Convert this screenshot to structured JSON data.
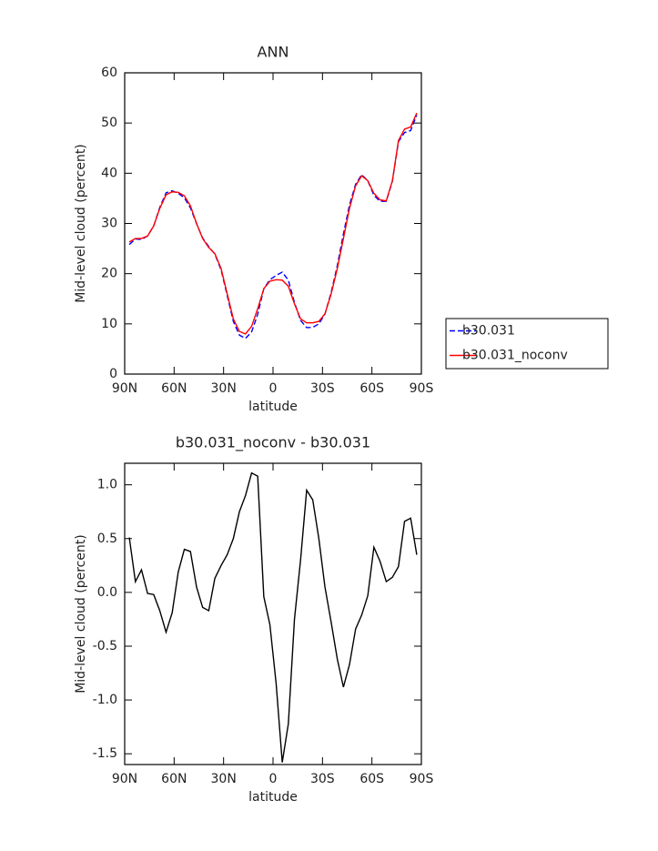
{
  "chart_data": [
    {
      "type": "line",
      "title": "ANN",
      "x_label": "latitude",
      "y_label": "Mid-level cloud (percent)",
      "x": [
        87.2,
        83.5,
        79.8,
        76.1,
        72.4,
        68.7,
        64.9,
        61.2,
        57.5,
        53.8,
        50.1,
        46.4,
        42.7,
        39.0,
        35.3,
        31.5,
        27.8,
        24.1,
        20.4,
        16.7,
        13.0,
        9.3,
        5.6,
        1.9,
        -1.9,
        -5.6,
        -9.3,
        -13.0,
        -16.7,
        -20.4,
        -24.1,
        -27.8,
        -31.5,
        -35.3,
        -39.0,
        -42.7,
        -46.4,
        -50.1,
        -53.8,
        -57.5,
        -61.2,
        -64.9,
        -68.7,
        -72.4,
        -76.1,
        -79.8,
        -83.5,
        -87.2
      ],
      "series": [
        {
          "name": "b30.031",
          "color": "#0000ff",
          "dash": "dashed",
          "values": [
            25.8,
            26.9,
            26.8,
            27.5,
            29.5,
            33.2,
            36.1,
            36.5,
            36.0,
            35.1,
            33.1,
            29.95,
            27.1,
            25.4,
            23.9,
            20.75,
            15.65,
            10.5,
            7.75,
            7.1,
            8.4,
            11.9,
            17.0,
            18.8,
            19.65,
            20.3,
            18.7,
            14.25,
            10.7,
            9.25,
            9.3,
            10.0,
            11.95,
            16.3,
            21.6,
            27.9,
            33.7,
            37.8,
            39.7,
            38.5,
            35.6,
            34.4,
            34.4,
            38.4,
            46.3,
            48.1,
            48.5,
            51.6
          ]
        },
        {
          "name": "b30.031_noconv",
          "color": "#ff0000",
          "dash": "solid",
          "values": [
            26.3,
            27.0,
            27.0,
            27.5,
            29.5,
            33.0,
            35.7,
            36.3,
            36.2,
            35.5,
            33.5,
            30.0,
            27.0,
            25.2,
            24.0,
            21.0,
            16.0,
            11.0,
            8.5,
            8.0,
            9.5,
            13.0,
            17.0,
            18.5,
            18.8,
            18.7,
            17.5,
            14.0,
            11.0,
            10.2,
            10.2,
            10.5,
            12.0,
            16.0,
            21.0,
            27.0,
            33.0,
            37.5,
            39.5,
            38.5,
            36.0,
            34.7,
            34.5,
            38.5,
            46.5,
            48.8,
            49.2,
            52.0
          ]
        }
      ],
      "xlim": [
        90,
        -90
      ],
      "xticks": [
        {
          "value": 90,
          "label": "90N"
        },
        {
          "value": 60,
          "label": "60N"
        },
        {
          "value": 30,
          "label": "30N"
        },
        0,
        {
          "value": -30,
          "label": "30S"
        },
        {
          "value": -60,
          "label": "60S"
        },
        {
          "value": -90,
          "label": "90S"
        }
      ],
      "ylim": [
        0,
        60
      ],
      "yticks": [
        0,
        10,
        20,
        30,
        40,
        50,
        60
      ],
      "legend": "outside-right"
    },
    {
      "type": "line",
      "title": "b30.031_noconv - b30.031",
      "x_label": "latitude",
      "y_label": "Mid-level cloud (percent)",
      "x": [
        87.2,
        83.5,
        79.8,
        76.1,
        72.4,
        68.7,
        64.9,
        61.2,
        57.5,
        53.8,
        50.1,
        46.4,
        42.7,
        39.0,
        35.3,
        31.5,
        27.8,
        24.1,
        20.4,
        16.7,
        13.0,
        9.3,
        5.6,
        1.9,
        -1.9,
        -5.6,
        -9.3,
        -13.0,
        -16.7,
        -20.4,
        -24.1,
        -27.8,
        -31.5,
        -35.3,
        -39.0,
        -42.7,
        -46.4,
        -50.1,
        -53.8,
        -57.5,
        -61.2,
        -64.9,
        -68.7,
        -72.4,
        -76.1,
        -79.8,
        -83.5,
        -87.2
      ],
      "series": [
        {
          "color": "#000000",
          "dash": "solid",
          "values": [
            0.51,
            0.1,
            0.21,
            -0.01,
            -0.02,
            -0.17,
            -0.37,
            -0.19,
            0.19,
            0.4,
            0.38,
            0.05,
            -0.14,
            -0.17,
            0.13,
            0.25,
            0.35,
            0.5,
            0.75,
            0.9,
            1.11,
            1.08,
            -0.04,
            -0.3,
            -0.85,
            -1.58,
            -1.22,
            -0.25,
            0.3,
            0.95,
            0.86,
            0.5,
            0.05,
            -0.28,
            -0.62,
            -0.88,
            -0.67,
            -0.34,
            -0.21,
            -0.03,
            0.42,
            0.29,
            0.1,
            0.14,
            0.24,
            0.66,
            0.69,
            0.35
          ]
        }
      ],
      "xlim": [
        90,
        -90
      ],
      "xticks": [
        {
          "value": 90,
          "label": "90N"
        },
        {
          "value": 60,
          "label": "60N"
        },
        {
          "value": 30,
          "label": "30N"
        },
        0,
        {
          "value": -30,
          "label": "30S"
        },
        {
          "value": -60,
          "label": "60S"
        },
        {
          "value": -90,
          "label": "90S"
        }
      ],
      "ylim": [
        -1.6,
        1.2
      ],
      "yticks": [
        {
          "value": -1.5,
          "label": "-1.5"
        },
        {
          "value": -1.0,
          "label": "-1.0"
        },
        -0.5,
        {
          "value": 0.0,
          "label": "0.0"
        },
        0.5,
        {
          "value": 1.0,
          "label": "1.0"
        }
      ]
    }
  ]
}
